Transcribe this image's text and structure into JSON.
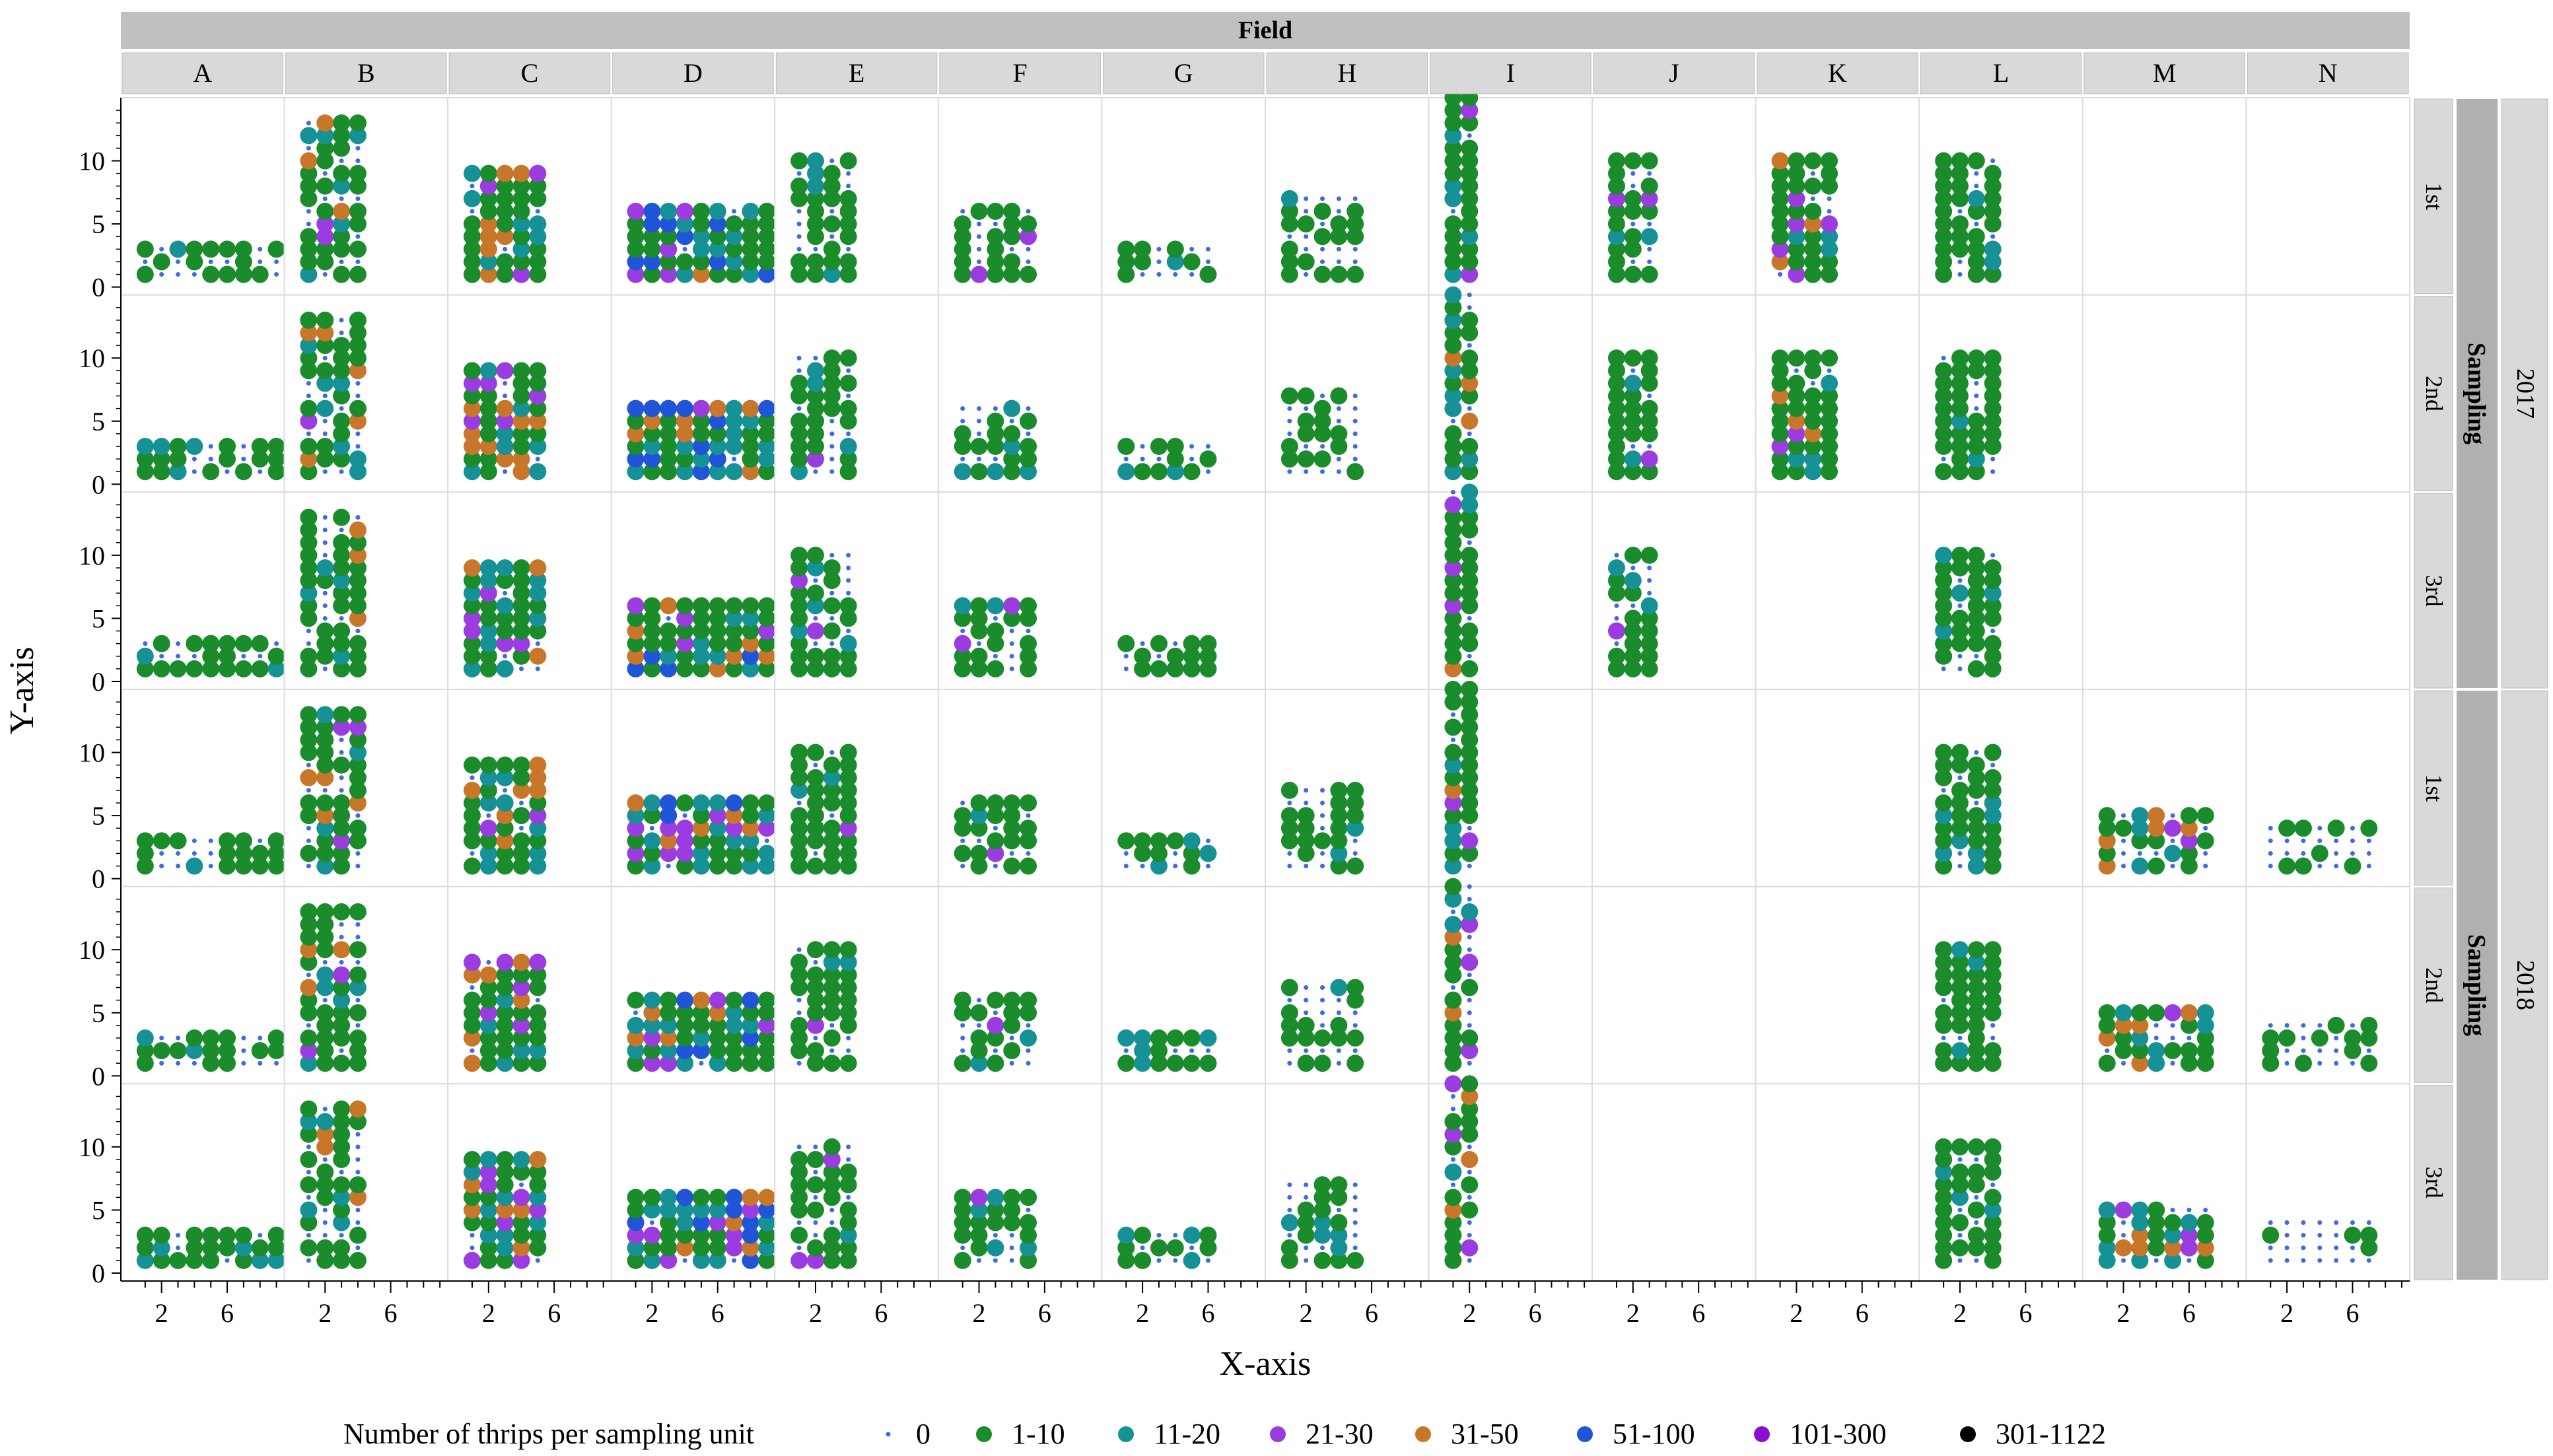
{
  "chart_data": {
    "type": "scatter",
    "facet_column_title": "Field",
    "facet_row_title": "Sampling",
    "xlabel": "X-axis",
    "ylabel": "Y-axis",
    "x_tick_labels": [
      "2",
      "6"
    ],
    "y_tick_labels": [
      "0",
      "5",
      "10"
    ],
    "xlim": [
      0,
      9
    ],
    "ylim": [
      0,
      15
    ],
    "grid": true,
    "legend_position": "bottom",
    "fields": [
      "A",
      "B",
      "C",
      "D",
      "E",
      "F",
      "G",
      "H",
      "I",
      "J",
      "K",
      "L",
      "M",
      "N"
    ],
    "years": [
      "2017",
      "2018"
    ],
    "samplings": [
      "1st",
      "2nd",
      "3rd"
    ],
    "legend": {
      "title": "Number of thrips per sampling unit",
      "classes": [
        "0",
        "1-10",
        "11-20",
        "21-30",
        "31-50",
        "51-100",
        "101-300",
        "301-1122"
      ],
      "colors": [
        "#4169e1",
        "#1a8c2b",
        "#169196",
        "#9a3ce0",
        "#c8772a",
        "#1f55d6",
        "#8a0fd0",
        "#000000"
      ]
    },
    "field_grids": {
      "A": [
        9,
        3
      ],
      "B": [
        4,
        13
      ],
      "C": [
        5,
        9
      ],
      "D": [
        10,
        6
      ],
      "E": [
        4,
        10
      ],
      "F": [
        5,
        6
      ],
      "G": [
        6,
        3
      ],
      "H": [
        5,
        7
      ],
      "I": [
        2,
        15
      ],
      "J": [
        3,
        10
      ],
      "K": [
        4,
        10
      ],
      "L": [
        4,
        10
      ],
      "M": [
        7,
        5
      ],
      "N": [
        7,
        4
      ]
    },
    "category_weights": {
      "A": [
        0.3,
        0.6,
        0.1,
        0,
        0,
        0,
        0,
        0
      ],
      "B": [
        0.3,
        0.5,
        0.1,
        0.05,
        0.05,
        0,
        0,
        0
      ],
      "C": [
        0.1,
        0.45,
        0.2,
        0.1,
        0.15,
        0,
        0,
        0
      ],
      "D": [
        0.05,
        0.45,
        0.2,
        0.1,
        0.1,
        0.1,
        0,
        0
      ],
      "E": [
        0.3,
        0.6,
        0.05,
        0.05,
        0,
        0,
        0,
        0
      ],
      "F": [
        0.3,
        0.6,
        0.05,
        0.05,
        0,
        0,
        0,
        0
      ],
      "G": [
        0.4,
        0.5,
        0.1,
        0,
        0,
        0,
        0,
        0
      ],
      "H": [
        0.5,
        0.45,
        0.05,
        0,
        0,
        0,
        0,
        0
      ],
      "I": [
        0.2,
        0.6,
        0.1,
        0.05,
        0.05,
        0,
        0,
        0
      ],
      "J": [
        0.2,
        0.7,
        0.05,
        0.05,
        0,
        0,
        0,
        0
      ],
      "K": [
        0.1,
        0.7,
        0.1,
        0.05,
        0.05,
        0,
        0,
        0
      ],
      "L": [
        0.2,
        0.7,
        0.1,
        0,
        0,
        0,
        0,
        0
      ],
      "M": [
        0.3,
        0.3,
        0.2,
        0.1,
        0.1,
        0,
        0,
        0
      ],
      "N": [
        0.7,
        0.3,
        0,
        0,
        0,
        0,
        0,
        0
      ]
    },
    "panels": [
      {
        "year": "2017",
        "sampling": "1st",
        "present": [
          "A",
          "B",
          "C",
          "D",
          "E",
          "F",
          "G",
          "H",
          "I",
          "J",
          "K",
          "L"
        ]
      },
      {
        "year": "2017",
        "sampling": "2nd",
        "present": [
          "A",
          "B",
          "C",
          "D",
          "E",
          "F",
          "G",
          "H",
          "I",
          "J",
          "K",
          "L"
        ]
      },
      {
        "year": "2017",
        "sampling": "3rd",
        "present": [
          "A",
          "B",
          "C",
          "D",
          "E",
          "F",
          "G",
          "I",
          "J",
          "L"
        ]
      },
      {
        "year": "2018",
        "sampling": "1st",
        "present": [
          "A",
          "B",
          "C",
          "D",
          "E",
          "F",
          "G",
          "H",
          "I",
          "L",
          "M",
          "N"
        ]
      },
      {
        "year": "2018",
        "sampling": "2nd",
        "present": [
          "A",
          "B",
          "C",
          "D",
          "E",
          "F",
          "G",
          "H",
          "I",
          "L",
          "M",
          "N"
        ]
      },
      {
        "year": "2018",
        "sampling": "3rd",
        "present": [
          "A",
          "B",
          "C",
          "D",
          "E",
          "F",
          "G",
          "H",
          "I",
          "L",
          "M",
          "N"
        ]
      }
    ]
  }
}
